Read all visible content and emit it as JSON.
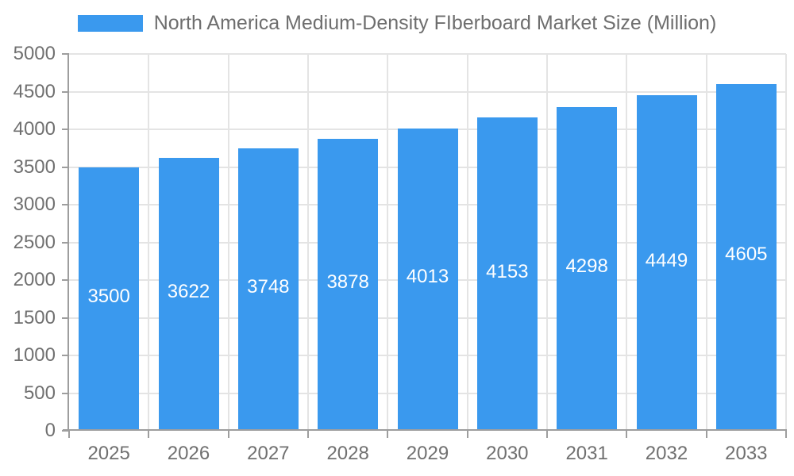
{
  "chart_data": {
    "type": "bar",
    "title": "North America Medium-Density FIberboard Market Size (Million)",
    "legend": [
      {
        "label": "North America Medium-Density FIberboard Market Size (Million)"
      }
    ],
    "legend_position": "top-center",
    "categories": [
      "2025",
      "2026",
      "2027",
      "2028",
      "2029",
      "2030",
      "2031",
      "2032",
      "2033"
    ],
    "values": [
      3500,
      3622,
      3748,
      3878,
      4013,
      4153,
      4298,
      4449,
      4605
    ],
    "xlabel": "",
    "ylabel": "",
    "ylim": [
      0,
      5000
    ],
    "yticks": [
      0,
      500,
      1000,
      1500,
      2000,
      2500,
      3000,
      3500,
      4000,
      4500,
      5000
    ],
    "grid": true,
    "bar_label_position": "inside-center",
    "colors": {
      "bar": "#3A99EE",
      "bar_label": "#FFFFFF",
      "axis_text": "#707070",
      "legend_text": "#6E6E6E",
      "grid_line": "#E4E4E4",
      "axis_line": "#9E9E9E",
      "background": "#FFFFFF"
    }
  }
}
